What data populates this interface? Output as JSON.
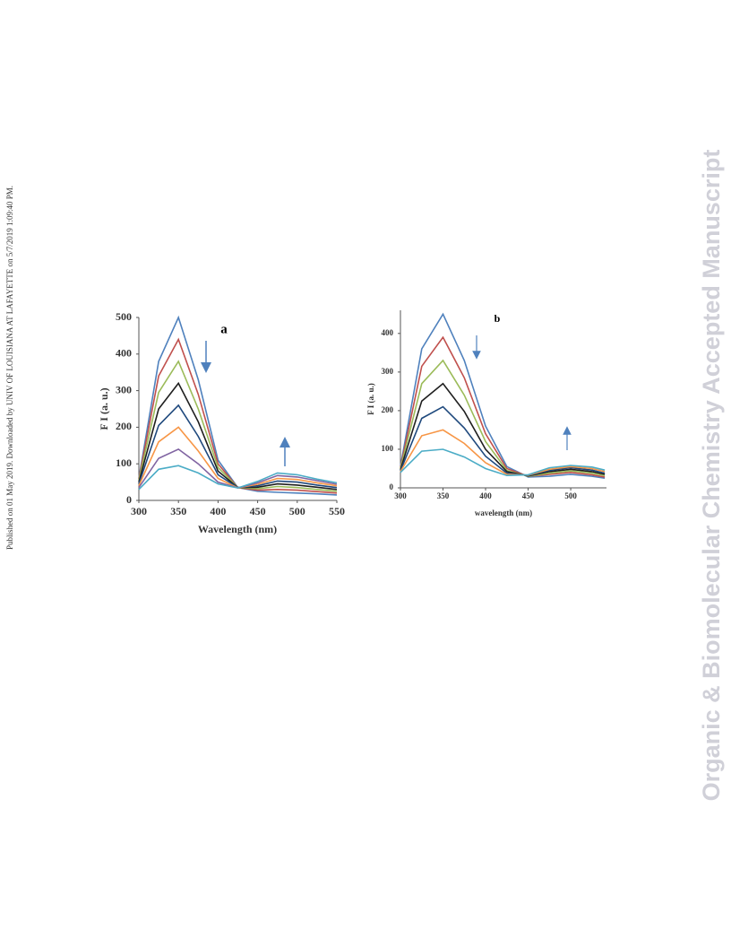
{
  "side_note": "Published on 01 May 2019. Downloaded by UNIV OF LOUISIANA AT LAFAYETTE on 5/7/2019 1:09:40 PM.",
  "watermark": "Organic & Biomolecular Chemistry Accepted Manuscript",
  "chart_data": [
    {
      "type": "line",
      "panel_label": "a",
      "x_label": "Wavelength  (nm)",
      "y_label": "F I  (a. u.)",
      "x": [
        300,
        325,
        350,
        375,
        400,
        425,
        450,
        475,
        500,
        525,
        550
      ],
      "xlim": [
        300,
        550
      ],
      "xticks": [
        300,
        350,
        400,
        450,
        500,
        550
      ],
      "ylim": [
        0,
        500
      ],
      "yticks": [
        0,
        100,
        200,
        300,
        400,
        500
      ],
      "series": [
        {
          "color": "#4f81bd",
          "values": [
            60,
            380,
            500,
            330,
            110,
            35,
            25,
            22,
            20,
            18,
            15
          ]
        },
        {
          "color": "#c0504d",
          "values": [
            58,
            340,
            440,
            290,
            100,
            35,
            28,
            30,
            28,
            24,
            20
          ]
        },
        {
          "color": "#9bbb59",
          "values": [
            55,
            295,
            380,
            250,
            90,
            35,
            32,
            38,
            35,
            30,
            25
          ]
        },
        {
          "color": "#1f1f1f",
          "values": [
            50,
            250,
            320,
            215,
            80,
            35,
            36,
            45,
            42,
            36,
            30
          ]
        },
        {
          "color": "#1f497d",
          "values": [
            45,
            205,
            260,
            175,
            70,
            35,
            40,
            53,
            50,
            42,
            35
          ]
        },
        {
          "color": "#f79646",
          "values": [
            40,
            160,
            200,
            135,
            60,
            34,
            44,
            60,
            57,
            48,
            40
          ]
        },
        {
          "color": "#8064a2",
          "values": [
            35,
            115,
            140,
            100,
            50,
            34,
            48,
            68,
            64,
            54,
            44
          ]
        },
        {
          "color": "#4bacc6",
          "values": [
            30,
            85,
            95,
            75,
            45,
            34,
            52,
            75,
            70,
            58,
            48
          ]
        }
      ]
    },
    {
      "type": "line",
      "panel_label": "b",
      "x_label": "wavelength  (nm)",
      "y_label": "F I (a. u.)",
      "x": [
        300,
        325,
        350,
        375,
        400,
        425,
        450,
        475,
        500,
        525,
        540
      ],
      "xlim": [
        300,
        542
      ],
      "xticks": [
        300,
        350,
        400,
        450,
        500
      ],
      "ylim": [
        0,
        460
      ],
      "yticks": [
        0,
        100,
        200,
        300,
        400
      ],
      "series": [
        {
          "color": "#4f81bd",
          "values": [
            55,
            360,
            450,
            330,
            160,
            55,
            28,
            30,
            35,
            30,
            25
          ]
        },
        {
          "color": "#c0504d",
          "values": [
            52,
            315,
            390,
            285,
            140,
            50,
            30,
            35,
            40,
            34,
            28
          ]
        },
        {
          "color": "#9bbb59",
          "values": [
            50,
            270,
            330,
            240,
            120,
            45,
            30,
            38,
            44,
            38,
            32
          ]
        },
        {
          "color": "#1f1f1f",
          "values": [
            47,
            225,
            270,
            198,
            100,
            42,
            31,
            42,
            48,
            42,
            35
          ]
        },
        {
          "color": "#1f497d",
          "values": [
            44,
            180,
            210,
            155,
            82,
            38,
            32,
            45,
            52,
            46,
            38
          ]
        },
        {
          "color": "#f79646",
          "values": [
            42,
            135,
            150,
            115,
            65,
            35,
            33,
            48,
            55,
            50,
            42
          ]
        },
        {
          "color": "#4bacc6",
          "values": [
            40,
            95,
            100,
            80,
            50,
            32,
            34,
            52,
            58,
            54,
            46
          ]
        }
      ]
    }
  ]
}
